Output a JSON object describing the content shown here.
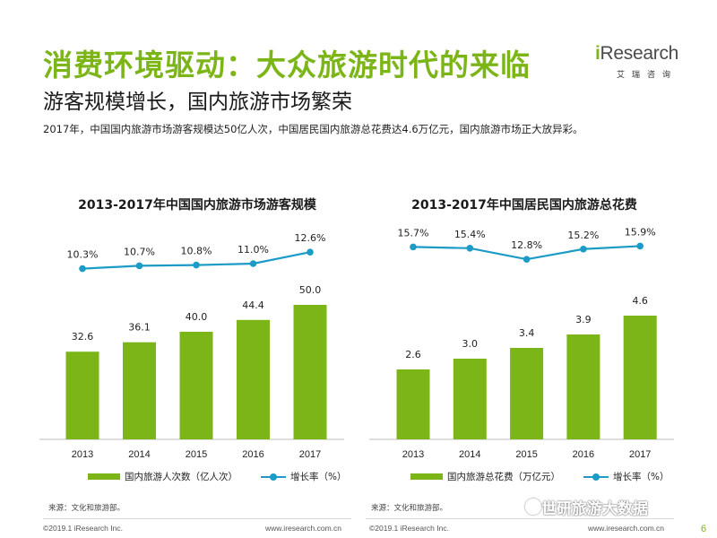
{
  "title": "消费环境驱动：大众旅游时代的来临",
  "subtitle": "游客规模增长，国内旅游市场繁荣",
  "summary": "2017年，中国国内旅游市场游客规模达50亿人次，中国居民国内旅游总花费达4.6万亿元，国内旅游市场正大放异彩。",
  "logo": {
    "text_i": "i",
    "text_rest": "Research",
    "sub": "艾瑞咨询"
  },
  "colors": {
    "accent_green": "#7cb518",
    "line_blue": "#1b9bc6"
  },
  "chart_data": [
    {
      "type": "bar",
      "title": "2013-2017年中国国内旅游市场游客规模",
      "categories": [
        "2013",
        "2014",
        "2015",
        "2016",
        "2017"
      ],
      "series": [
        {
          "name": "国内旅游人次数（亿人次）",
          "kind": "bar",
          "values": [
            32.6,
            36.1,
            40.0,
            44.4,
            50.0
          ],
          "labels": [
            "32.6",
            "36.1",
            "40.0",
            "44.4",
            "50.0"
          ]
        },
        {
          "name": "增长率（%）",
          "kind": "line",
          "values": [
            10.3,
            10.7,
            10.8,
            11.0,
            12.6
          ],
          "labels": [
            "10.3%",
            "10.7%",
            "10.8%",
            "11.0%",
            "12.6%"
          ]
        }
      ],
      "bar_max": 50.0,
      "line_range": [
        9.5,
        13.0
      ],
      "legend": "bottom"
    },
    {
      "type": "bar",
      "title": "2013-2017年中国居民国内旅游总花费",
      "categories": [
        "2013",
        "2014",
        "2015",
        "2016",
        "2017"
      ],
      "series": [
        {
          "name": "国内旅游总花费（万亿元）",
          "kind": "bar",
          "values": [
            2.6,
            3.0,
            3.4,
            3.9,
            4.6
          ],
          "labels": [
            "2.6",
            "3.0",
            "3.4",
            "3.9",
            "4.6"
          ]
        },
        {
          "name": "增长率（%）",
          "kind": "line",
          "values": [
            15.7,
            15.4,
            12.8,
            15.2,
            15.9
          ],
          "labels": [
            "15.7%",
            "15.4%",
            "12.8%",
            "15.2%",
            "15.9%"
          ]
        }
      ],
      "bar_max": 4.6,
      "line_range": [
        12.0,
        16.2
      ],
      "legend": "bottom"
    }
  ],
  "source_left": "来源：文化和旅游部。",
  "source_right": "来源：文化和旅游部。",
  "copyright_left": "©2019.1 iResearch Inc.",
  "website_left": "www.iresearch.com.cn",
  "copyright_right": "©2019.1 iResearch Inc.",
  "website_right": "www.iresearch.com.cn",
  "watermark": "世研旅游大数据",
  "page_number": "6"
}
